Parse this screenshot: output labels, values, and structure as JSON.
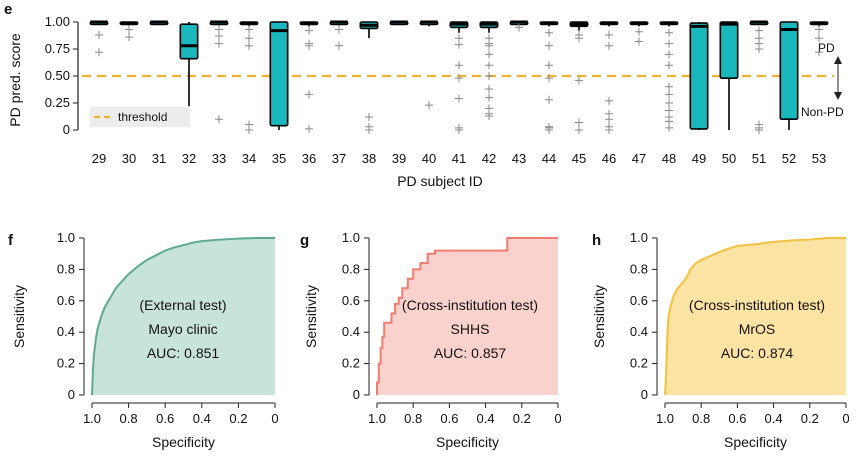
{
  "panel_letters": [
    "e",
    "f",
    "g",
    "h"
  ],
  "chart_data": [
    {
      "type": "box",
      "panel": "e",
      "xlabel": "PD subject ID",
      "ylabel": "PD pred. score",
      "ylim": [
        0,
        1
      ],
      "yticks": [
        "0",
        "0.25",
        "0.50",
        "0.75",
        "1.00"
      ],
      "threshold": 0.5,
      "legend": {
        "label": "threshold",
        "position": "bottom-left"
      },
      "right_labels": {
        "up": "PD",
        "down": "Non-PD"
      },
      "colors": {
        "box": "#1ab7bc",
        "threshold": "#f0b030"
      },
      "categories": [
        "29",
        "30",
        "31",
        "32",
        "33",
        "34",
        "35",
        "36",
        "37",
        "38",
        "39",
        "40",
        "41",
        "42",
        "43",
        "44",
        "45",
        "46",
        "47",
        "48",
        "49",
        "50",
        "51",
        "52",
        "53"
      ],
      "boxes": [
        {
          "id": "29",
          "q1": 0.99,
          "median": 1.0,
          "q3": 1.0,
          "lo": 0.98,
          "hi": 1.0,
          "outliers": [
            0.88,
            0.72
          ]
        },
        {
          "id": "30",
          "q1": 0.98,
          "median": 0.99,
          "q3": 1.0,
          "lo": 0.97,
          "hi": 1.0,
          "outliers": [
            0.93,
            0.86
          ]
        },
        {
          "id": "31",
          "q1": 0.99,
          "median": 1.0,
          "q3": 1.0,
          "lo": 0.99,
          "hi": 1.0,
          "outliers": []
        },
        {
          "id": "32",
          "q1": 0.66,
          "median": 0.78,
          "q3": 0.98,
          "lo": 0.22,
          "hi": 1.0,
          "outliers": []
        },
        {
          "id": "33",
          "q1": 0.99,
          "median": 1.0,
          "q3": 1.0,
          "lo": 0.97,
          "hi": 1.0,
          "outliers": [
            0.93,
            0.87,
            0.8,
            0.1
          ]
        },
        {
          "id": "34",
          "q1": 0.98,
          "median": 0.99,
          "q3": 1.0,
          "lo": 0.96,
          "hi": 1.0,
          "outliers": [
            0.93,
            0.85,
            0.78,
            0.05,
            0.0
          ]
        },
        {
          "id": "35",
          "q1": 0.04,
          "median": 0.92,
          "q3": 1.0,
          "lo": 0.0,
          "hi": 1.0,
          "outliers": []
        },
        {
          "id": "36",
          "q1": 0.98,
          "median": 0.99,
          "q3": 1.0,
          "lo": 0.96,
          "hi": 1.0,
          "outliers": [
            0.92,
            0.8,
            0.78,
            0.33,
            0.01
          ]
        },
        {
          "id": "37",
          "q1": 0.99,
          "median": 1.0,
          "q3": 1.0,
          "lo": 0.97,
          "hi": 1.0,
          "outliers": [
            0.93,
            0.78
          ]
        },
        {
          "id": "38",
          "q1": 0.94,
          "median": 0.97,
          "q3": 1.0,
          "lo": 0.85,
          "hi": 1.0,
          "outliers": [
            0.12,
            0.03,
            0.0
          ]
        },
        {
          "id": "39",
          "q1": 0.99,
          "median": 1.0,
          "q3": 1.0,
          "lo": 0.99,
          "hi": 1.0,
          "outliers": []
        },
        {
          "id": "40",
          "q1": 0.99,
          "median": 1.0,
          "q3": 1.0,
          "lo": 0.96,
          "hi": 1.0,
          "outliers": [
            0.23
          ]
        },
        {
          "id": "41",
          "q1": 0.95,
          "median": 0.98,
          "q3": 1.0,
          "lo": 0.9,
          "hi": 1.0,
          "outliers": [
            0.85,
            0.79,
            0.6,
            0.48,
            0.29,
            0.02,
            0.0
          ]
        },
        {
          "id": "42",
          "q1": 0.95,
          "median": 0.98,
          "q3": 1.0,
          "lo": 0.9,
          "hi": 1.0,
          "outliers": [
            0.85,
            0.8,
            0.78,
            0.7,
            0.6,
            0.5,
            0.38,
            0.3,
            0.2,
            0.15,
            0.13
          ]
        },
        {
          "id": "43",
          "q1": 0.99,
          "median": 1.0,
          "q3": 1.0,
          "lo": 0.97,
          "hi": 1.0,
          "outliers": [
            0.95
          ]
        },
        {
          "id": "44",
          "q1": 0.98,
          "median": 0.99,
          "q3": 1.0,
          "lo": 0.96,
          "hi": 1.0,
          "outliers": [
            0.9,
            0.78,
            0.6,
            0.48,
            0.28,
            0.03,
            0.02,
            0.0
          ]
        },
        {
          "id": "45",
          "q1": 0.96,
          "median": 0.98,
          "q3": 1.0,
          "lo": 0.92,
          "hi": 1.0,
          "outliers": [
            0.88,
            0.85,
            0.46,
            0.07,
            0.0
          ]
        },
        {
          "id": "46",
          "q1": 0.98,
          "median": 0.99,
          "q3": 1.0,
          "lo": 0.96,
          "hi": 1.0,
          "outliers": [
            0.88,
            0.78,
            0.27,
            0.15,
            0.1,
            0.03,
            0.0
          ]
        },
        {
          "id": "47",
          "q1": 0.98,
          "median": 0.99,
          "q3": 1.0,
          "lo": 0.96,
          "hi": 1.0,
          "outliers": [
            0.91,
            0.82
          ]
        },
        {
          "id": "48",
          "q1": 0.98,
          "median": 0.99,
          "q3": 1.0,
          "lo": 0.96,
          "hi": 1.0,
          "outliers": [
            0.9,
            0.8,
            0.7,
            0.6,
            0.4,
            0.33,
            0.25,
            0.18,
            0.12,
            0.08,
            0.02
          ]
        },
        {
          "id": "49",
          "q1": 0.01,
          "median": 0.96,
          "q3": 0.99,
          "lo": 0.0,
          "hi": 1.0,
          "outliers": []
        },
        {
          "id": "50",
          "q1": 0.48,
          "median": 0.98,
          "q3": 1.0,
          "lo": 0.0,
          "hi": 1.0,
          "outliers": []
        },
        {
          "id": "51",
          "q1": 0.99,
          "median": 1.0,
          "q3": 1.0,
          "lo": 0.97,
          "hi": 1.0,
          "outliers": [
            0.92,
            0.85,
            0.8,
            0.75,
            0.05,
            0.02,
            0.0
          ]
        },
        {
          "id": "52",
          "q1": 0.1,
          "median": 0.93,
          "q3": 1.0,
          "lo": 0.0,
          "hi": 1.0,
          "outliers": []
        },
        {
          "id": "53",
          "q1": 0.98,
          "median": 0.99,
          "q3": 1.0,
          "lo": 0.96,
          "hi": 1.0,
          "outliers": [
            0.93,
            0.85,
            0.72
          ]
        }
      ]
    },
    {
      "type": "area",
      "panel": "f",
      "xlabel": "Specificity",
      "ylabel": "Sensitivity",
      "xticks": [
        "1.0",
        "0.8",
        "0.6",
        "0.4",
        "0.2",
        "0"
      ],
      "yticks": [
        "0",
        "0.2",
        "0.4",
        "0.6",
        "0.8",
        "1.0"
      ],
      "xlim": [
        1,
        0
      ],
      "ylim": [
        0,
        1
      ],
      "annotation": [
        "(External test)",
        "Mayo clinic",
        "AUC: 0.851"
      ],
      "line_color": "#5faa8e",
      "fill_color": "#c8e3da",
      "points": [
        [
          1.0,
          0.0
        ],
        [
          0.995,
          0.15
        ],
        [
          0.99,
          0.25
        ],
        [
          0.98,
          0.35
        ],
        [
          0.97,
          0.42
        ],
        [
          0.95,
          0.5
        ],
        [
          0.93,
          0.56
        ],
        [
          0.9,
          0.62
        ],
        [
          0.87,
          0.68
        ],
        [
          0.84,
          0.72
        ],
        [
          0.8,
          0.77
        ],
        [
          0.75,
          0.82
        ],
        [
          0.7,
          0.86
        ],
        [
          0.65,
          0.89
        ],
        [
          0.6,
          0.92
        ],
        [
          0.55,
          0.94
        ],
        [
          0.5,
          0.955
        ],
        [
          0.45,
          0.97
        ],
        [
          0.4,
          0.98
        ],
        [
          0.3,
          0.99
        ],
        [
          0.2,
          0.996
        ],
        [
          0.1,
          1.0
        ],
        [
          0.0,
          1.0
        ]
      ]
    },
    {
      "type": "area",
      "panel": "g",
      "xlabel": "Specificity",
      "ylabel": "Sensitivity",
      "xticks": [
        "1.0",
        "0.8",
        "0.6",
        "0.4",
        "0.2",
        "0"
      ],
      "yticks": [
        "0",
        "0.2",
        "0.4",
        "0.6",
        "0.8",
        "1.0"
      ],
      "xlim": [
        1,
        0
      ],
      "ylim": [
        0,
        1
      ],
      "annotation": [
        "(Cross-institution test)",
        "SHHS",
        "AUC: 0.857"
      ],
      "line_color": "#f07b6f",
      "fill_color": "#fad2cd",
      "points": [
        [
          1.0,
          0.0
        ],
        [
          1.0,
          0.08
        ],
        [
          0.99,
          0.08
        ],
        [
          0.99,
          0.2
        ],
        [
          0.98,
          0.2
        ],
        [
          0.98,
          0.3
        ],
        [
          0.97,
          0.3
        ],
        [
          0.97,
          0.37
        ],
        [
          0.96,
          0.37
        ],
        [
          0.96,
          0.46
        ],
        [
          0.92,
          0.46
        ],
        [
          0.92,
          0.52
        ],
        [
          0.9,
          0.52
        ],
        [
          0.9,
          0.58
        ],
        [
          0.88,
          0.58
        ],
        [
          0.88,
          0.62
        ],
        [
          0.86,
          0.62
        ],
        [
          0.86,
          0.68
        ],
        [
          0.83,
          0.68
        ],
        [
          0.83,
          0.74
        ],
        [
          0.8,
          0.74
        ],
        [
          0.8,
          0.8
        ],
        [
          0.76,
          0.8
        ],
        [
          0.76,
          0.84
        ],
        [
          0.72,
          0.84
        ],
        [
          0.72,
          0.9
        ],
        [
          0.68,
          0.9
        ],
        [
          0.68,
          0.92
        ],
        [
          0.28,
          0.92
        ],
        [
          0.28,
          1.0
        ],
        [
          0.0,
          1.0
        ]
      ]
    },
    {
      "type": "area",
      "panel": "h",
      "xlabel": "Specificity",
      "ylabel": "Sensitivity",
      "xticks": [
        "1.0",
        "0.8",
        "0.6",
        "0.4",
        "0.2",
        "0"
      ],
      "yticks": [
        "0",
        "0.2",
        "0.4",
        "0.6",
        "0.8",
        "1.0"
      ],
      "xlim": [
        1,
        0
      ],
      "ylim": [
        0,
        1
      ],
      "annotation": [
        "(Cross-institution test)",
        "MrOS",
        "AUC: 0.874"
      ],
      "line_color": "#f5c040",
      "fill_color": "#fbe3a4",
      "points": [
        [
          1.0,
          0.0
        ],
        [
          0.995,
          0.1
        ],
        [
          0.99,
          0.28
        ],
        [
          0.985,
          0.42
        ],
        [
          0.98,
          0.5
        ],
        [
          0.97,
          0.56
        ],
        [
          0.96,
          0.6
        ],
        [
          0.95,
          0.64
        ],
        [
          0.93,
          0.68
        ],
        [
          0.9,
          0.72
        ],
        [
          0.88,
          0.75
        ],
        [
          0.86,
          0.8
        ],
        [
          0.83,
          0.84
        ],
        [
          0.8,
          0.86
        ],
        [
          0.76,
          0.88
        ],
        [
          0.72,
          0.9
        ],
        [
          0.68,
          0.92
        ],
        [
          0.6,
          0.95
        ],
        [
          0.5,
          0.96
        ],
        [
          0.4,
          0.975
        ],
        [
          0.3,
          0.985
        ],
        [
          0.2,
          0.99
        ],
        [
          0.1,
          1.0
        ],
        [
          0.0,
          1.0
        ]
      ]
    }
  ]
}
